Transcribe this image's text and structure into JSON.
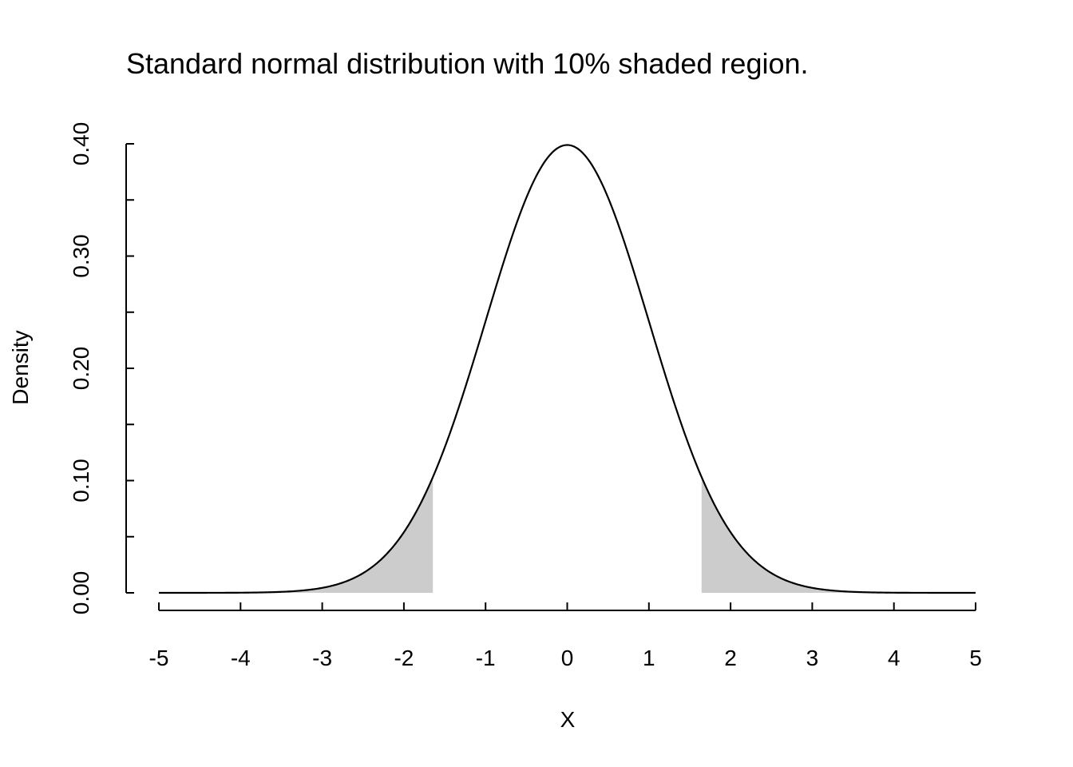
{
  "chart_data": {
    "type": "area",
    "title": "Standard normal distribution with 10% shaded region.",
    "xlabel": "X",
    "ylabel": "Density",
    "xlim": [
      -5,
      5
    ],
    "ylim": [
      0,
      0.4
    ],
    "x_ticks": [
      -5,
      -4,
      -3,
      -2,
      -1,
      0,
      1,
      2,
      3,
      4,
      5
    ],
    "x_tick_labels": [
      "-5",
      "-4",
      "-3",
      "-2",
      "-1",
      "0",
      "1",
      "2",
      "3",
      "4",
      "5"
    ],
    "y_ticks": [
      0,
      0.05,
      0.1,
      0.15,
      0.2,
      0.25,
      0.3,
      0.35,
      0.4
    ],
    "y_tick_labels": [
      "0.00",
      "0.10",
      "0.20",
      "0.30",
      "0.40"
    ],
    "y_labeled_ticks": [
      0,
      0.1,
      0.2,
      0.3,
      0.4
    ],
    "curve": {
      "distribution": "standard-normal",
      "mean": 0,
      "sd": 1,
      "x_range": [
        -5,
        5
      ],
      "color": "#000000"
    },
    "shaded_regions": [
      {
        "from": -5,
        "to": -1.645,
        "color": "#cccccc"
      },
      {
        "from": 1.645,
        "to": 5,
        "color": "#cccccc"
      }
    ],
    "shaded_probability": 0.1,
    "grid": false,
    "legend": "none"
  }
}
